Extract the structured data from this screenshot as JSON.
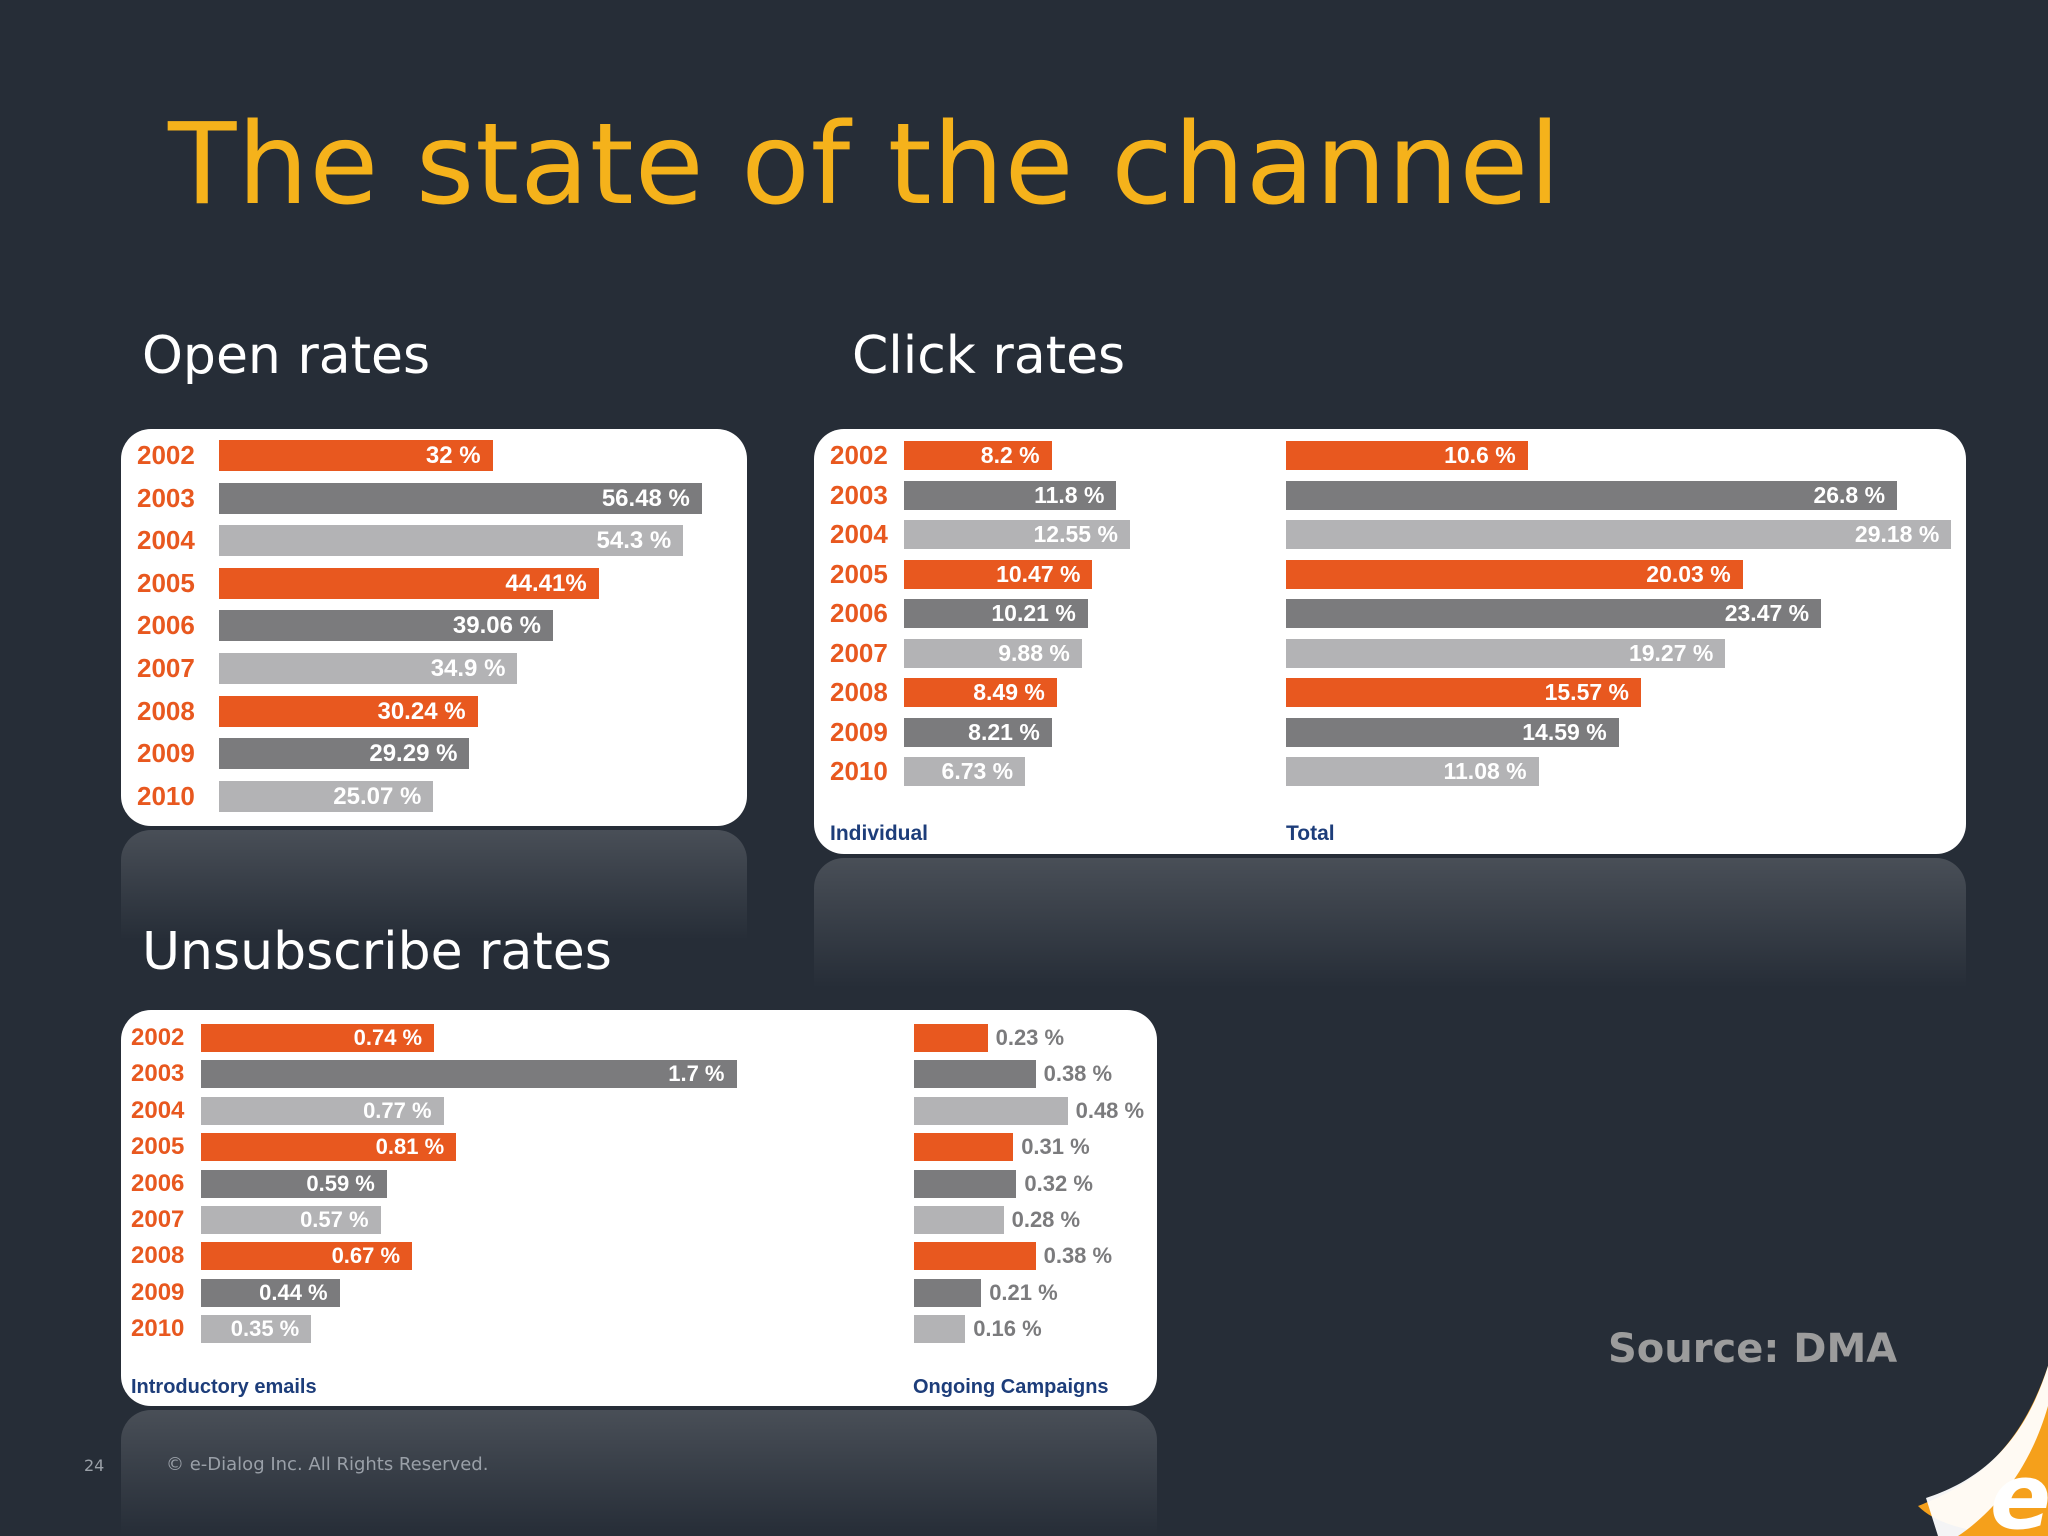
{
  "slide": {
    "title": "The state of the channel",
    "source": "Source: DMA",
    "page_number": "24",
    "copyright": "© e-Dialog Inc. All Rights Reserved."
  },
  "colors": {
    "orange": "#e8581f",
    "dark_gray": "#7b7b7d",
    "light_gray": "#b3b3b5",
    "title": "#f5b21b"
  },
  "chart_data": [
    {
      "type": "bar",
      "title": "Open rates",
      "categories": [
        "2002",
        "2003",
        "2004",
        "2005",
        "2006",
        "2007",
        "2008",
        "2009",
        "2010"
      ],
      "series": [
        {
          "values": [
            32,
            56.48,
            54.3,
            44.41,
            39.06,
            34.9,
            30.24,
            29.29,
            25.07
          ],
          "labels": [
            "32 %",
            "56.48 %",
            "54.3 %",
            "44.41%",
            "39.06 %",
            "34.9 %",
            "30.24 %",
            "29.29 %",
            "25.07 %"
          ]
        }
      ]
    },
    {
      "type": "bar",
      "title": "Click rates",
      "categories": [
        "2002",
        "2003",
        "2004",
        "2005",
        "2006",
        "2007",
        "2008",
        "2009",
        "2010"
      ],
      "series": [
        {
          "name": "Individual",
          "values": [
            8.2,
            11.8,
            12.55,
            10.47,
            10.21,
            9.88,
            8.49,
            8.21,
            6.73
          ],
          "labels": [
            "8.2 %",
            "11.8 %",
            "12.55 %",
            "10.47 %",
            "10.21 %",
            "9.88 %",
            "8.49 %",
            "8.21 %",
            "6.73 %"
          ]
        },
        {
          "name": "Total",
          "values": [
            10.6,
            26.8,
            29.18,
            20.03,
            23.47,
            19.27,
            15.57,
            14.59,
            11.08
          ],
          "labels": [
            "10.6 %",
            "26.8 %",
            "29.18 %",
            "20.03 %",
            "23.47 %",
            "19.27 %",
            "15.57 %",
            "14.59 %",
            "11.08 %"
          ]
        }
      ]
    },
    {
      "type": "bar",
      "title": "Unsubscribe rates",
      "categories": [
        "2002",
        "2003",
        "2004",
        "2005",
        "2006",
        "2007",
        "2008",
        "2009",
        "2010"
      ],
      "series": [
        {
          "name": "Introductory emails",
          "values": [
            0.74,
            1.7,
            0.77,
            0.81,
            0.59,
            0.57,
            0.67,
            0.44,
            0.35
          ],
          "labels": [
            "0.74 %",
            "1.7 %",
            "0.77 %",
            "0.81 %",
            "0.59 %",
            "0.57 %",
            "0.67 %",
            "0.44 %",
            "0.35 %"
          ]
        },
        {
          "name": "Ongoing Campaigns",
          "values": [
            0.23,
            0.38,
            0.48,
            0.31,
            0.32,
            0.28,
            0.38,
            0.21,
            0.16
          ],
          "labels": [
            "0.23 %",
            "0.38 %",
            "0.48 %",
            "0.31 %",
            "0.32 %",
            "0.28 %",
            "0.38 %",
            "0.21 %",
            "0.16 %"
          ]
        }
      ]
    }
  ]
}
